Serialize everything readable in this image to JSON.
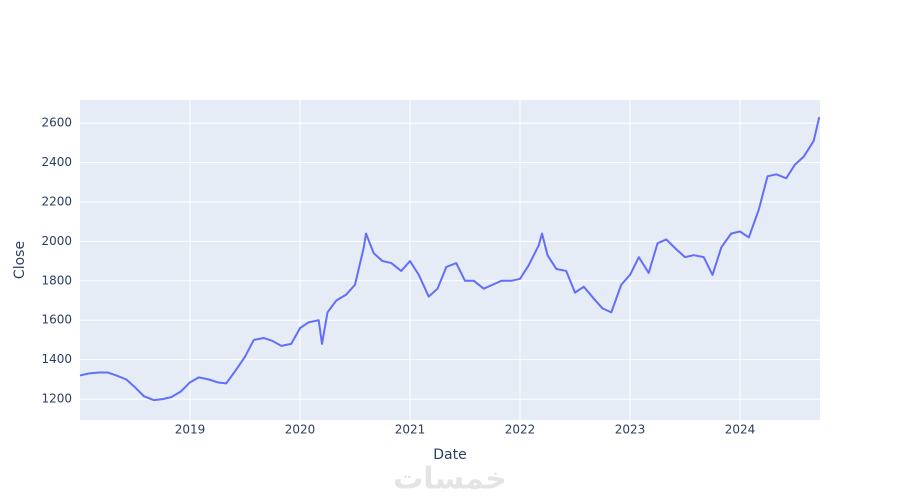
{
  "chart_data": {
    "type": "line",
    "x_label": "Date",
    "y_label": "Close",
    "watermark": "خمسات",
    "x": [
      2018.0,
      2018.08,
      2018.17,
      2018.25,
      2018.33,
      2018.42,
      2018.5,
      2018.58,
      2018.67,
      2018.75,
      2018.83,
      2018.92,
      2019.0,
      2019.08,
      2019.17,
      2019.25,
      2019.33,
      2019.42,
      2019.5,
      2019.58,
      2019.67,
      2019.75,
      2019.83,
      2019.92,
      2020.0,
      2020.08,
      2020.17,
      2020.2,
      2020.25,
      2020.33,
      2020.42,
      2020.5,
      2020.58,
      2020.6,
      2020.67,
      2020.75,
      2020.83,
      2020.92,
      2021.0,
      2021.08,
      2021.17,
      2021.25,
      2021.33,
      2021.42,
      2021.5,
      2021.58,
      2021.67,
      2021.75,
      2021.83,
      2021.92,
      2022.0,
      2022.08,
      2022.17,
      2022.2,
      2022.25,
      2022.33,
      2022.42,
      2022.5,
      2022.58,
      2022.67,
      2022.75,
      2022.83,
      2022.92,
      2023.0,
      2023.08,
      2023.17,
      2023.25,
      2023.33,
      2023.42,
      2023.5,
      2023.58,
      2023.67,
      2023.75,
      2023.83,
      2023.92,
      2024.0,
      2024.08,
      2024.17,
      2024.25,
      2024.33,
      2024.42,
      2024.5,
      2024.58,
      2024.67,
      2024.72
    ],
    "series": [
      {
        "name": "Close",
        "color": "#636efa",
        "values": [
          1320,
          1330,
          1335,
          1335,
          1320,
          1300,
          1260,
          1215,
          1195,
          1200,
          1210,
          1240,
          1285,
          1310,
          1300,
          1285,
          1280,
          1350,
          1415,
          1500,
          1510,
          1495,
          1470,
          1480,
          1560,
          1590,
          1600,
          1480,
          1640,
          1700,
          1730,
          1780,
          1970,
          2040,
          1940,
          1900,
          1890,
          1850,
          1900,
          1830,
          1720,
          1760,
          1870,
          1890,
          1800,
          1800,
          1760,
          1780,
          1800,
          1800,
          1810,
          1880,
          1980,
          2040,
          1930,
          1860,
          1850,
          1740,
          1770,
          1710,
          1660,
          1640,
          1780,
          1830,
          1920,
          1840,
          1990,
          2010,
          1960,
          1920,
          1930,
          1920,
          1830,
          1970,
          2040,
          2050,
          2020,
          2160,
          2330,
          2340,
          2320,
          2390,
          2430,
          2510,
          2630
        ]
      }
    ],
    "xlim": [
      2018.0,
      2024.727
    ],
    "xticks": [
      2019,
      2020,
      2021,
      2022,
      2023,
      2024
    ],
    "ylim": [
      1094,
      2717
    ],
    "yticks": [
      1200,
      1400,
      1600,
      1800,
      2000,
      2200,
      2400,
      2600
    ],
    "grid": true
  }
}
